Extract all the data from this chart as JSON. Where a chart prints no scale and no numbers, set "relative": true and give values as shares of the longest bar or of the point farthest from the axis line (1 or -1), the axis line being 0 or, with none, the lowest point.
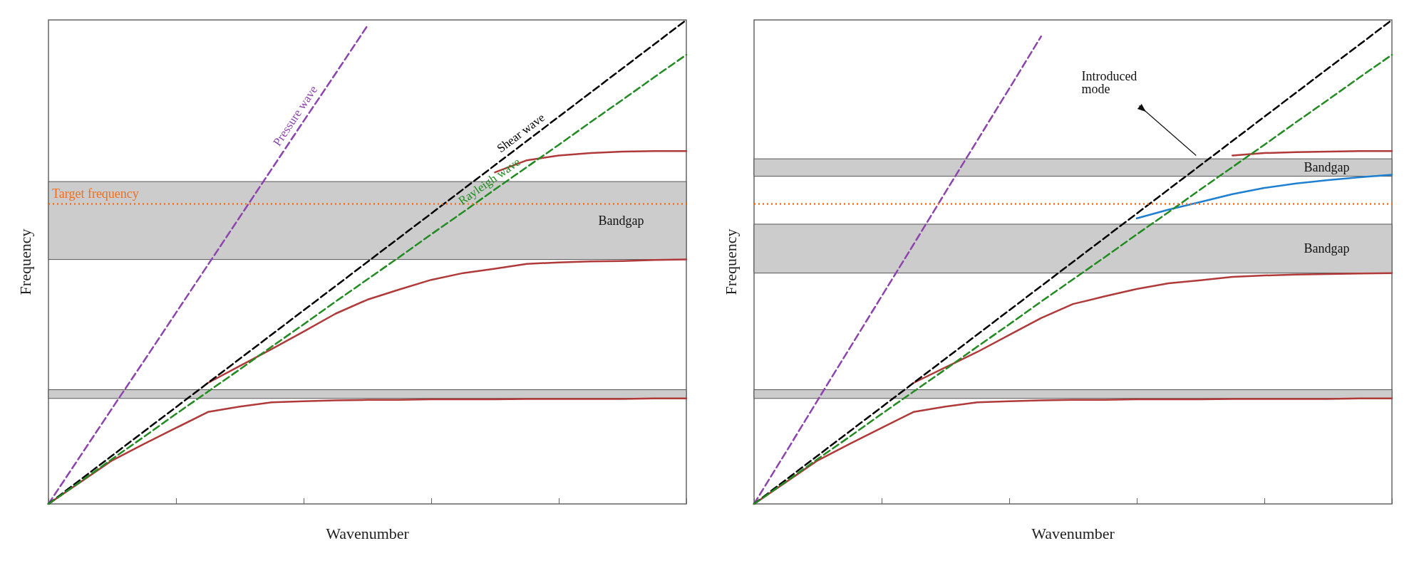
{
  "chart_data": [
    {
      "type": "line",
      "relative": true,
      "xlabel": "Wavenumber",
      "ylabel": "Frequency",
      "categories": [
        null,
        null,
        null,
        null,
        null,
        null,
        null,
        null,
        null,
        null,
        null,
        null,
        null,
        null,
        null,
        null,
        null,
        null,
        null,
        null,
        null
      ],
      "grid": false,
      "legend": false,
      "marker": "none",
      "line_style": "solid",
      "series": [
        {
          "color": "#b03a3a",
          "values": [
            0,
            0.045,
            0.09,
            0.124,
            0.157,
            0.19,
            0.201,
            0.21,
            0.212,
            0.214,
            0.215,
            0.215,
            0.216,
            0.216,
            0.216,
            0.217,
            0.217,
            0.217,
            0.217,
            0.218,
            0.218
          ]
        },
        {
          "color": "#b03a3a",
          "values": [
            null,
            null,
            null,
            null,
            null,
            0.25,
            0.285,
            0.32,
            0.356,
            0.393,
            0.422,
            0.443,
            0.463,
            0.477,
            0.486,
            0.496,
            0.499,
            0.501,
            0.502,
            0.504,
            0.505
          ]
        },
        {
          "color": "#b03a3a",
          "values": [
            null,
            null,
            null,
            null,
            null,
            null,
            null,
            null,
            null,
            null,
            null,
            null,
            null,
            null,
            0.685,
            0.71,
            0.72,
            0.725,
            0.728,
            0.729,
            0.729
          ]
        },
        {
          "name": "Pressure wave",
          "color": "#8e44ad",
          "line_style": "dashed",
          "values": [
            0,
            0.099,
            0.198,
            0.296,
            0.395,
            0.494,
            0.593,
            0.692,
            0.791,
            0.889,
            0.988,
            null,
            null,
            null,
            null,
            null,
            null,
            null,
            null,
            null,
            null
          ]
        },
        {
          "name": "Shear wave",
          "color": "#000000",
          "line_style": "dashed",
          "values": [
            0,
            0.05,
            0.1,
            0.15,
            0.2,
            0.25,
            0.3,
            0.35,
            0.4,
            0.45,
            0.5,
            0.55,
            0.6,
            0.65,
            0.7,
            0.75,
            0.8,
            0.85,
            0.9,
            0.95,
            1
          ]
        },
        {
          "name": "Rayleigh wave",
          "color": "#228b22",
          "line_style": "dashed",
          "values": [
            0,
            0.046,
            0.093,
            0.139,
            0.186,
            0.232,
            0.278,
            0.325,
            0.371,
            0.418,
            0.464,
            0.51,
            0.557,
            0.603,
            0.65,
            0.696,
            0.742,
            0.789,
            0.835,
            0.882,
            0.928
          ]
        }
      ],
      "ref_lines": [
        {
          "axis": "y",
          "value": 0.621,
          "label": "Target frequency",
          "color": "#f07020",
          "line_style": "dotted"
        }
      ],
      "bands": [
        {
          "axis": "y",
          "from": 0.505,
          "to": 0.666,
          "label": "Bandgap",
          "color": "#cccccc"
        },
        {
          "axis": "y",
          "from": 0.218,
          "to": 0.236,
          "label": null,
          "color": "#cccccc"
        }
      ]
    },
    {
      "type": "line",
      "relative": true,
      "xlabel": "Wavenumber",
      "ylabel": "Frequency",
      "categories": [
        null,
        null,
        null,
        null,
        null,
        null,
        null,
        null,
        null,
        null,
        null,
        null,
        null,
        null,
        null,
        null,
        null,
        null,
        null,
        null,
        null
      ],
      "grid": false,
      "legend": false,
      "marker": "none",
      "line_style": "solid",
      "series": [
        {
          "color": "#b03a3a",
          "values": [
            0,
            0.045,
            0.09,
            0.124,
            0.157,
            0.19,
            0.201,
            0.21,
            0.212,
            0.214,
            0.215,
            0.215,
            0.216,
            0.216,
            0.216,
            0.217,
            0.217,
            0.217,
            0.217,
            0.218,
            0.218
          ]
        },
        {
          "color": "#b03a3a",
          "values": [
            null,
            null,
            null,
            null,
            null,
            0.25,
            0.282,
            0.314,
            0.349,
            0.384,
            0.413,
            0.429,
            0.444,
            0.456,
            0.462,
            0.469,
            0.472,
            0.474,
            0.475,
            0.476,
            0.477
          ]
        },
        {
          "color": "#b03a3a",
          "values": [
            null,
            null,
            null,
            null,
            null,
            null,
            null,
            null,
            null,
            null,
            null,
            null,
            null,
            null,
            null,
            0.72,
            0.725,
            0.727,
            0.728,
            0.729,
            0.729
          ]
        },
        {
          "color": "#1f7fd0",
          "values": [
            null,
            null,
            null,
            null,
            null,
            null,
            null,
            null,
            null,
            null,
            null,
            null,
            0.59,
            0.608,
            0.624,
            0.64,
            0.653,
            0.662,
            0.669,
            0.675,
            0.68
          ]
        },
        {
          "color": "#8e44ad",
          "line_style": "dashed",
          "values": [
            0,
            0.107,
            0.215,
            0.322,
            0.429,
            0.536,
            0.644,
            0.751,
            0.858,
            0.966,
            null,
            null,
            null,
            null,
            null,
            null,
            null,
            null,
            null,
            null,
            null
          ]
        },
        {
          "color": "#000000",
          "line_style": "dashed",
          "values": [
            0,
            0.05,
            0.1,
            0.15,
            0.2,
            0.25,
            0.3,
            0.35,
            0.4,
            0.45,
            0.5,
            0.55,
            0.6,
            0.65,
            0.7,
            0.75,
            0.8,
            0.85,
            0.9,
            0.95,
            1
          ]
        },
        {
          "color": "#228b22",
          "line_style": "dashed",
          "values": [
            0,
            0.046,
            0.093,
            0.139,
            0.186,
            0.232,
            0.278,
            0.325,
            0.371,
            0.418,
            0.464,
            0.51,
            0.557,
            0.603,
            0.65,
            0.696,
            0.742,
            0.789,
            0.835,
            0.882,
            0.928
          ]
        }
      ],
      "ref_lines": [
        {
          "axis": "y",
          "value": 0.621,
          "label": null,
          "color": "#f07020",
          "line_style": "dotted"
        }
      ],
      "bands": [
        {
          "axis": "y",
          "from": 0.677,
          "to": 0.713,
          "label": "Bandgap",
          "color": "#cccccc"
        },
        {
          "axis": "y",
          "from": 0.477,
          "to": 0.578,
          "label": "Bandgap",
          "color": "#cccccc"
        },
        {
          "axis": "y",
          "from": 0.218,
          "to": 0.236,
          "label": null,
          "color": "#cccccc"
        }
      ],
      "annotations": [
        "Introduced mode"
      ]
    }
  ]
}
